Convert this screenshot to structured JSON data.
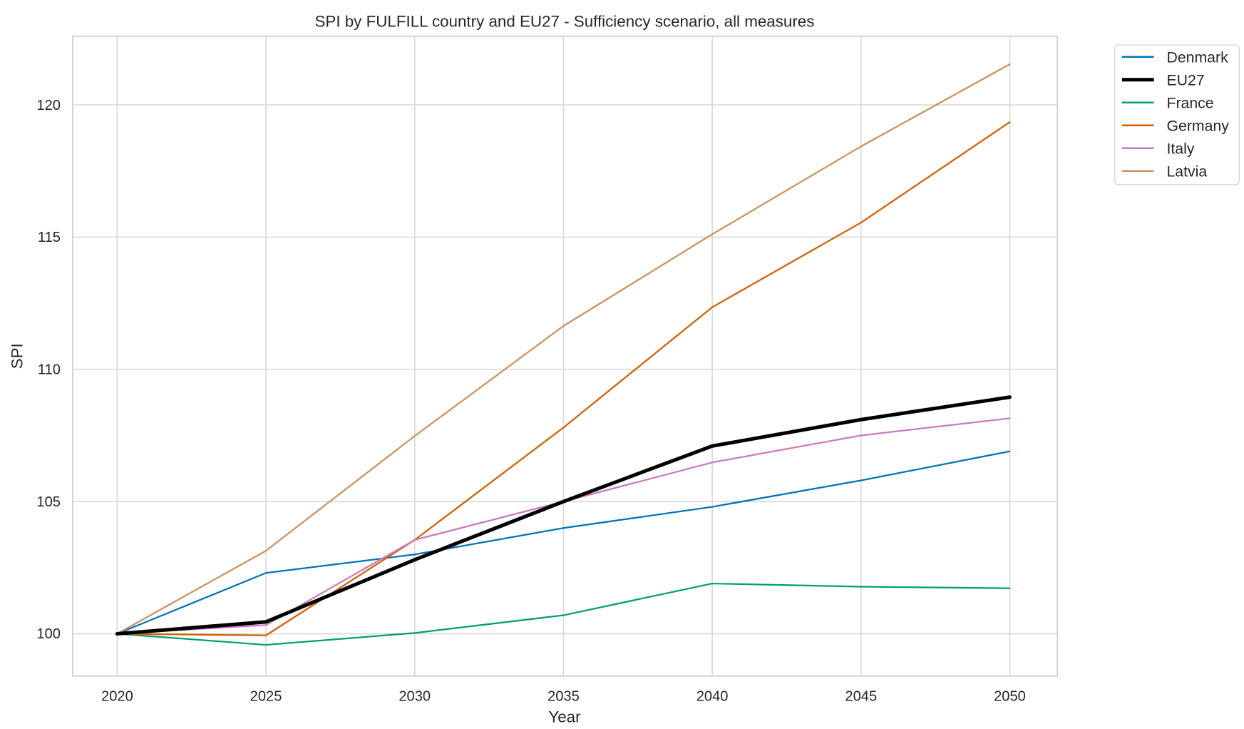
{
  "chart_data": {
    "type": "line",
    "title": "SPI by FULFILL country and EU27 - Sufficiency scenario, all measures",
    "xlabel": "Year",
    "ylabel": "SPI",
    "x": [
      2020,
      2025,
      2030,
      2035,
      2040,
      2045,
      2050
    ],
    "xticks": [
      "2020",
      "2025",
      "2030",
      "2035",
      "2040",
      "2045",
      "2050"
    ],
    "yticks": [
      "100",
      "105",
      "110",
      "115",
      "120"
    ],
    "ytick_values": [
      100,
      105,
      110,
      115,
      120
    ],
    "xlim": [
      2018.5,
      2051.6
    ],
    "ylim": [
      98.4,
      122.6
    ],
    "grid": true,
    "legend_position": "outside top-right",
    "series": [
      {
        "name": "Denmark",
        "color": "#0173b2",
        "width": 2,
        "values": [
          100,
          102.3,
          103.0,
          104.0,
          104.8,
          105.8,
          106.9
        ]
      },
      {
        "name": "EU27",
        "color": "#000000",
        "width": 4.5,
        "values": [
          100,
          100.45,
          102.8,
          105.0,
          107.1,
          108.1,
          108.95
        ]
      },
      {
        "name": "France",
        "color": "#029e73",
        "width": 2,
        "values": [
          100,
          99.58,
          100.03,
          100.7,
          101.9,
          101.78,
          101.72
        ]
      },
      {
        "name": "Germany",
        "color": "#d55e00",
        "width": 2,
        "values": [
          100,
          99.94,
          103.55,
          107.8,
          112.35,
          115.55,
          119.35
        ]
      },
      {
        "name": "Italy",
        "color": "#cc78bc",
        "width": 2,
        "values": [
          100,
          100.33,
          103.55,
          105.0,
          106.48,
          107.5,
          108.15
        ]
      },
      {
        "name": "Latvia",
        "color": "#ca9161",
        "width": 2,
        "values": [
          100,
          103.14,
          107.48,
          111.64,
          115.11,
          118.43,
          121.54
        ]
      }
    ]
  }
}
